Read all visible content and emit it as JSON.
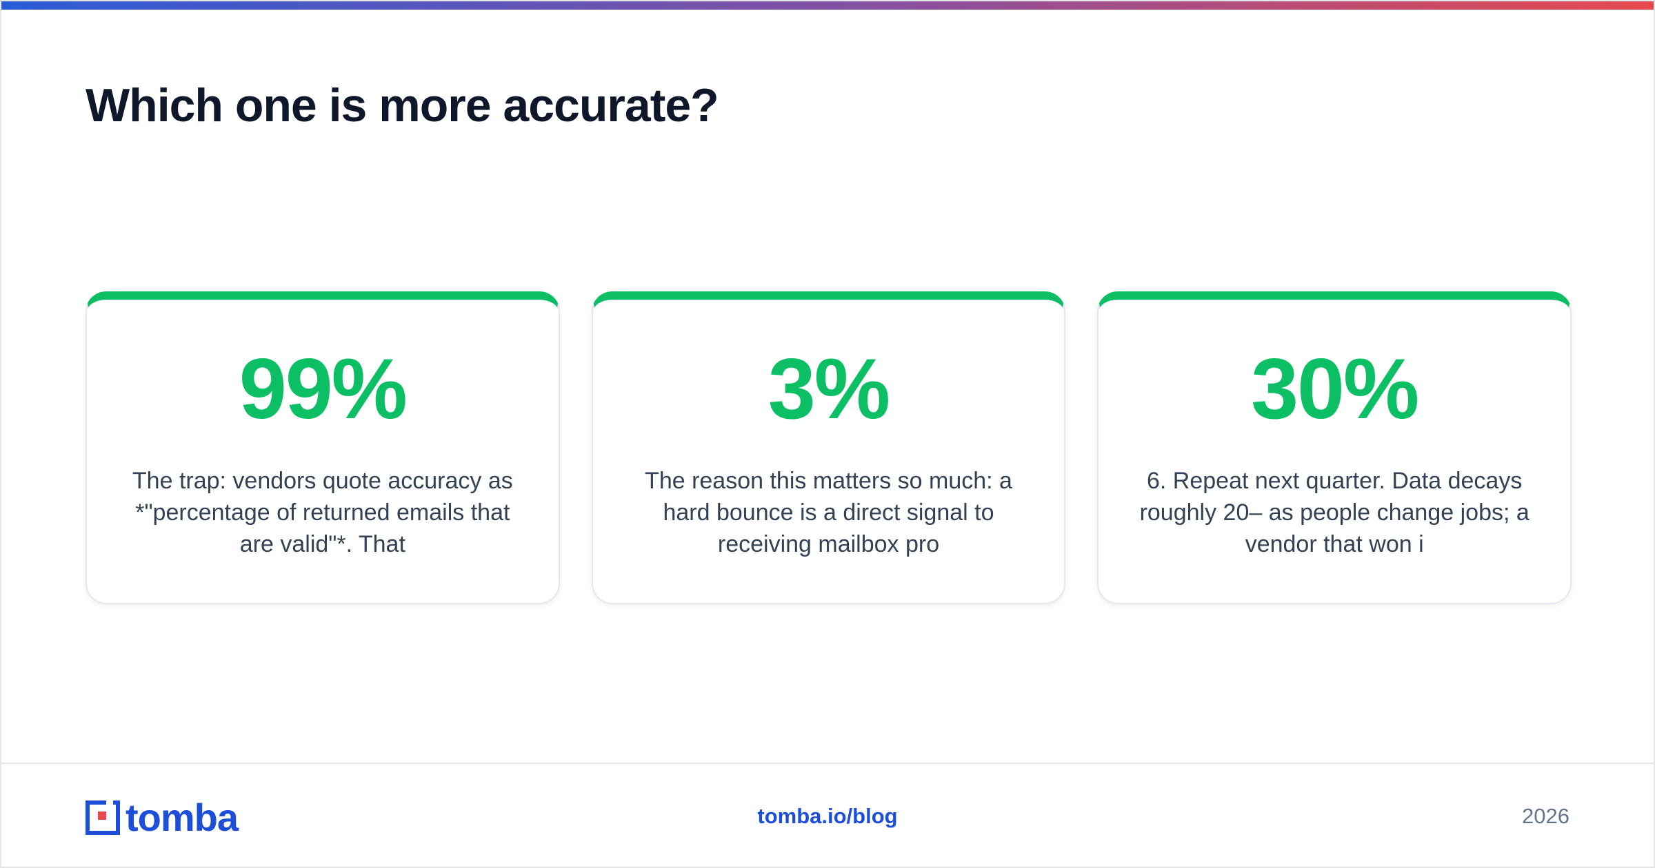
{
  "header": {
    "title": "Which one is more accurate?"
  },
  "cards": [
    {
      "stat": "99%",
      "text": "The trap: vendors quote accuracy as *\"percentage of returned emails that are valid\"*. That"
    },
    {
      "stat": "3%",
      "text": "The reason this matters so much: a hard bounce is a direct signal to receiving mailbox pro"
    },
    {
      "stat": "30%",
      "text": "6. Repeat next quarter. Data decays roughly 20– as people change jobs; a vendor that won i"
    }
  ],
  "footer": {
    "logo": "tomba",
    "url": "tomba.io/blog",
    "year": "2026"
  }
}
